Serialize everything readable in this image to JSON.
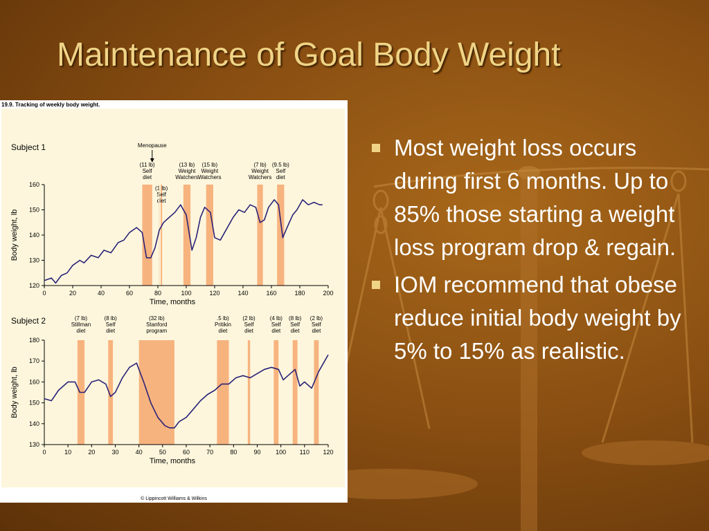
{
  "slide": {
    "title": "Maintenance of Goal Body Weight",
    "bullets": [
      "Most weight loss occurs during first 6 months. Up to 85% those starting a weight loss program drop & regain.",
      "IOM recommend that obese reduce initial body weight by 5% to 15% as realistic."
    ]
  },
  "figure": {
    "caption": "19.9. Tracking of weekly body weight.",
    "copyright": "© Lippincott Williams & Wilkins"
  },
  "colors": {
    "figure_background": "#fdf6dc",
    "diet_band": "#f7b37e",
    "line": "#2a2278",
    "bullet_text": "#ffffff",
    "title_text": "#f0d486"
  },
  "chart_data": [
    {
      "type": "line",
      "title": "Subject 1",
      "xlabel": "Time, months",
      "ylabel": "Body weight, lb",
      "xlim": [
        0,
        200
      ],
      "ylim": [
        120,
        160
      ],
      "xticks": [
        0,
        20,
        40,
        60,
        80,
        100,
        120,
        140,
        160,
        180,
        200
      ],
      "yticks": [
        120,
        130,
        140,
        150,
        160
      ],
      "grid": false,
      "top_annotations": [
        {
          "label": "Menopause",
          "x": 76
        }
      ],
      "intervention_bands": [
        {
          "label": [
            "(11 lb)",
            "Self",
            "diet"
          ],
          "x_start": 69,
          "x_end": 76
        },
        {
          "label": [
            "(1 lb)",
            "Self",
            "diet"
          ],
          "x_start": 82,
          "x_end": 83
        },
        {
          "label": [
            "(13 lb)",
            "Weight",
            "Watchers"
          ],
          "x_start": 98,
          "x_end": 103
        },
        {
          "label": [
            "(15 lb)",
            "Weight",
            "Watchers"
          ],
          "x_start": 114,
          "x_end": 119
        },
        {
          "label": [
            "(7 lb)",
            "Weight",
            "Watchers"
          ],
          "x_start": 150,
          "x_end": 154
        },
        {
          "label": [
            "(9.5 lb)",
            "Self",
            "diet"
          ],
          "x_start": 164,
          "x_end": 169
        }
      ],
      "series": [
        {
          "x": [
            0,
            5,
            8,
            12,
            16,
            20,
            25,
            28,
            33,
            38,
            42,
            47,
            52,
            56,
            60,
            65,
            69,
            72,
            75,
            78,
            81,
            84,
            88,
            92,
            96,
            100,
            104,
            107,
            110,
            113,
            117,
            120,
            124,
            128,
            133,
            137,
            141,
            145,
            149,
            152,
            155,
            158,
            162,
            165,
            168,
            171,
            175,
            178,
            182,
            186,
            190,
            194,
            196
          ],
          "y": [
            122,
            123,
            121,
            124,
            125,
            128,
            130,
            129,
            132,
            131,
            134,
            133,
            137,
            138,
            141,
            143,
            141,
            131,
            131,
            135,
            142,
            145,
            147,
            149,
            152,
            148,
            134,
            139,
            147,
            151,
            149,
            139,
            138,
            142,
            147,
            150,
            149,
            152,
            151,
            145,
            146,
            151,
            154,
            152,
            139,
            143,
            148,
            150,
            154,
            152,
            153,
            152,
            152
          ]
        }
      ]
    },
    {
      "type": "line",
      "title": "Subject 2",
      "xlabel": "Time, months",
      "ylabel": "Body weight, lb",
      "xlim": [
        0,
        120
      ],
      "ylim": [
        130,
        180
      ],
      "xticks": [
        0,
        10,
        20,
        30,
        40,
        50,
        60,
        70,
        80,
        90,
        100,
        110,
        120
      ],
      "yticks": [
        130,
        140,
        150,
        160,
        170,
        180
      ],
      "grid": false,
      "intervention_bands": [
        {
          "label": [
            "(7 lb)",
            "Stillman",
            "diet"
          ],
          "x_start": 14,
          "x_end": 17
        },
        {
          "label": [
            "(8 lb)",
            "Self",
            "diet"
          ],
          "x_start": 27,
          "x_end": 29
        },
        {
          "label": [
            "(32 lb)",
            "Stanford",
            "program"
          ],
          "x_start": 40,
          "x_end": 55
        },
        {
          "label": [
            ".5 lb)",
            "Pritikin",
            "diet"
          ],
          "x_start": 73,
          "x_end": 78
        },
        {
          "label": [
            "(2 lb)",
            "Self",
            "diet"
          ],
          "x_start": 86,
          "x_end": 87
        },
        {
          "label": [
            "(4 lb)",
            "Self",
            "diet"
          ],
          "x_start": 97,
          "x_end": 99
        },
        {
          "label": [
            "(8 lb)",
            "Self",
            "diet"
          ],
          "x_start": 105,
          "x_end": 107
        },
        {
          "label": [
            "(2 lb)",
            "Self",
            "diet"
          ],
          "x_start": 114,
          "x_end": 116
        }
      ],
      "series": [
        {
          "x": [
            0,
            3,
            6,
            10,
            13,
            15,
            17,
            20,
            23,
            26,
            28,
            30,
            33,
            36,
            39,
            42,
            45,
            48,
            51,
            53,
            55,
            57,
            60,
            63,
            66,
            69,
            72,
            75,
            78,
            81,
            84,
            87,
            90,
            93,
            96,
            99,
            101,
            104,
            106,
            108,
            110,
            113,
            116,
            118,
            120
          ],
          "y": [
            152,
            151,
            156,
            160,
            160,
            155,
            155,
            160,
            161,
            159,
            153,
            155,
            162,
            167,
            169,
            160,
            150,
            143,
            139,
            138,
            138,
            141,
            143,
            147,
            151,
            154,
            156,
            159,
            159,
            162,
            163,
            162,
            164,
            166,
            167,
            166,
            161,
            164,
            166,
            158,
            160,
            157,
            165,
            169,
            173
          ]
        }
      ]
    }
  ]
}
